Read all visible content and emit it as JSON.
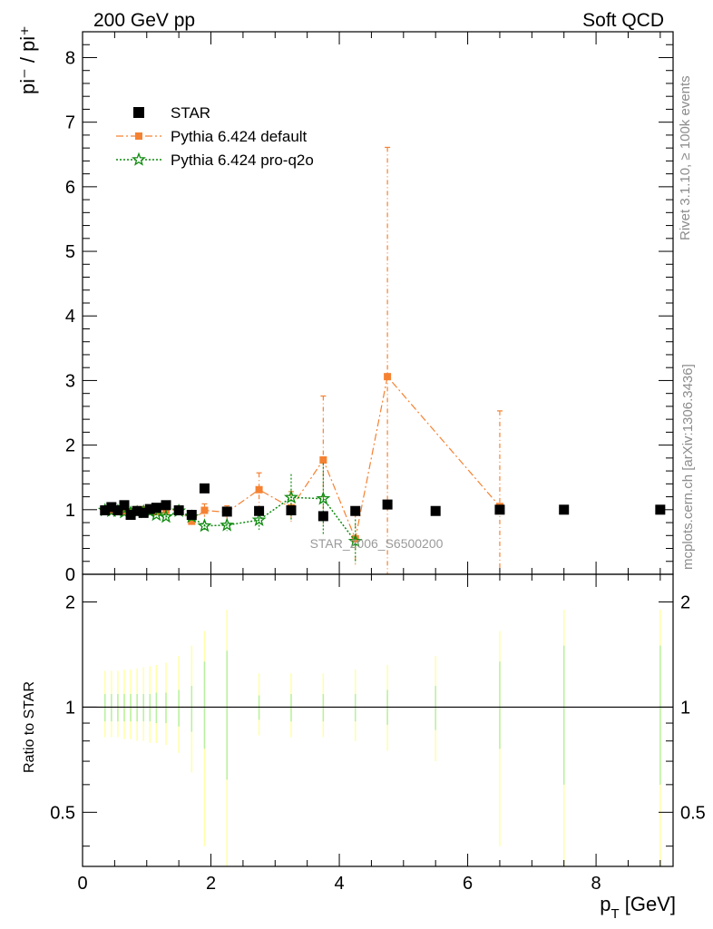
{
  "header": {
    "left": "200 GeV pp",
    "right": "Soft QCD"
  },
  "side_labels": {
    "rivet": "Rivet 3.1.10, ≥ 100k events",
    "mcplots": "mcplots.cern.ch [arXiv:1306.3436]"
  },
  "watermark": "STAR_2006_S6500200",
  "colors": {
    "star": "#000000",
    "pythia_default": "#f58232",
    "pythia_proq2o": "#0d8a0d",
    "band_inner": "#b8f0a0",
    "band_outer": "#ffffa8"
  },
  "chart_data": [
    {
      "type": "scatter",
      "panel": "main",
      "ylabel": "pi⁻ / pi⁺",
      "ylim": [
        0,
        8.4
      ],
      "xlim": [
        0,
        9.2
      ],
      "y_ticks": [
        "0",
        "1",
        "2",
        "3",
        "4",
        "5",
        "6",
        "7",
        "8"
      ],
      "legend": {
        "placement": "top-left",
        "entries": [
          "STAR",
          "Pythia 6.424 default",
          "Pythia 6.424 pro-q2o"
        ]
      },
      "series": [
        {
          "name": "STAR",
          "marker": "square",
          "x": [
            0.35,
            0.45,
            0.55,
            0.65,
            0.75,
            0.85,
            0.95,
            1.05,
            1.15,
            1.3,
            1.5,
            1.7,
            1.9,
            2.25,
            2.75,
            3.25,
            3.75,
            4.25,
            4.75,
            5.5,
            6.5,
            7.5,
            9.0
          ],
          "y": [
            0.99,
            1.04,
            0.99,
            1.07,
            0.92,
            0.98,
            0.95,
            1.01,
            1.03,
            1.07,
            0.99,
            0.92,
            1.33,
            0.97,
            0.98,
            0.99,
            0.9,
            0.98,
            1.08,
            0.98,
            1.0,
            1.0,
            1.0
          ]
        },
        {
          "name": "Pythia 6.424 default",
          "marker": "square-small",
          "line": "dash-dot",
          "x": [
            0.35,
            0.45,
            0.55,
            0.65,
            0.75,
            0.85,
            0.95,
            1.05,
            1.15,
            1.3,
            1.5,
            1.7,
            1.9,
            2.25,
            2.75,
            3.25,
            3.75,
            4.25,
            4.75,
            6.5
          ],
          "y": [
            0.99,
            0.98,
            0.99,
            0.98,
            0.97,
            1.0,
            1.0,
            0.98,
            0.97,
            0.99,
            1.0,
            0.82,
            0.99,
            0.96,
            1.31,
            1.03,
            1.77,
            0.55,
            3.06,
            1.05
          ],
          "err": [
            0.02,
            0.02,
            0.02,
            0.02,
            0.02,
            0.02,
            0.03,
            0.03,
            0.03,
            0.04,
            0.05,
            0.08,
            0.1,
            0.1,
            0.26,
            0.25,
            0.99,
            0.4,
            3.55,
            1.48
          ]
        },
        {
          "name": "Pythia 6.424 pro-q2o",
          "marker": "star",
          "line": "dotted",
          "x": [
            0.35,
            0.45,
            0.55,
            0.65,
            0.75,
            0.85,
            0.95,
            1.05,
            1.15,
            1.3,
            1.5,
            1.7,
            1.9,
            2.25,
            2.75,
            3.25,
            3.75,
            4.25
          ],
          "y": [
            0.99,
            0.98,
            0.98,
            0.96,
            0.95,
            0.96,
            0.97,
            0.97,
            0.92,
            0.89,
            0.98,
            0.89,
            0.75,
            0.76,
            0.84,
            1.19,
            1.17,
            0.51
          ],
          "err": [
            0.02,
            0.02,
            0.02,
            0.02,
            0.02,
            0.02,
            0.03,
            0.03,
            0.03,
            0.04,
            0.05,
            0.06,
            0.08,
            0.09,
            0.15,
            0.36,
            0.55,
            0.34
          ]
        }
      ]
    },
    {
      "type": "scatter",
      "panel": "ratio",
      "xlabel": "p_T [GeV]",
      "ylabel": "Ratio to STAR",
      "yscale": "log",
      "ylim": [
        0.35,
        2.4
      ],
      "xlim": [
        0,
        9.2
      ],
      "x_ticks": [
        "0",
        "2",
        "4",
        "6",
        "8"
      ],
      "y_ticks": [
        "0.5",
        "1",
        "2"
      ],
      "reference_line": 1,
      "bands": {
        "x": [
          0.35,
          0.45,
          0.55,
          0.65,
          0.75,
          0.85,
          0.95,
          1.05,
          1.15,
          1.3,
          1.5,
          1.7,
          1.9,
          2.25,
          2.75,
          3.25,
          3.75,
          4.25,
          4.75,
          5.5,
          6.5,
          7.5,
          9.0
        ],
        "inner": [
          [
            0.91,
            1.09
          ],
          [
            0.91,
            1.09
          ],
          [
            0.91,
            1.09
          ],
          [
            0.91,
            1.09
          ],
          [
            0.91,
            1.09
          ],
          [
            0.91,
            1.09
          ],
          [
            0.91,
            1.09
          ],
          [
            0.91,
            1.09
          ],
          [
            0.9,
            1.1
          ],
          [
            0.9,
            1.1
          ],
          [
            0.88,
            1.12
          ],
          [
            0.85,
            1.15
          ],
          [
            0.76,
            1.35
          ],
          [
            0.62,
            1.45
          ],
          [
            0.92,
            1.08
          ],
          [
            0.91,
            1.09
          ],
          [
            0.91,
            1.09
          ],
          [
            0.91,
            1.09
          ],
          [
            0.89,
            1.12
          ],
          [
            0.86,
            1.15
          ],
          [
            0.76,
            1.35
          ],
          [
            0.6,
            1.5
          ],
          [
            0.6,
            1.5
          ]
        ],
        "outer": [
          [
            0.82,
            1.27
          ],
          [
            0.82,
            1.27
          ],
          [
            0.82,
            1.27
          ],
          [
            0.81,
            1.28
          ],
          [
            0.81,
            1.28
          ],
          [
            0.8,
            1.29
          ],
          [
            0.8,
            1.3
          ],
          [
            0.79,
            1.31
          ],
          [
            0.79,
            1.32
          ],
          [
            0.78,
            1.34
          ],
          [
            0.74,
            1.4
          ],
          [
            0.65,
            1.5
          ],
          [
            0.4,
            1.65
          ],
          [
            0.35,
            1.9
          ],
          [
            0.83,
            1.25
          ],
          [
            0.82,
            1.25
          ],
          [
            0.82,
            1.25
          ],
          [
            0.8,
            1.28
          ],
          [
            0.75,
            1.32
          ],
          [
            0.7,
            1.4
          ],
          [
            0.4,
            1.65
          ],
          [
            0.35,
            1.9
          ],
          [
            0.35,
            1.9
          ]
        ]
      }
    }
  ]
}
